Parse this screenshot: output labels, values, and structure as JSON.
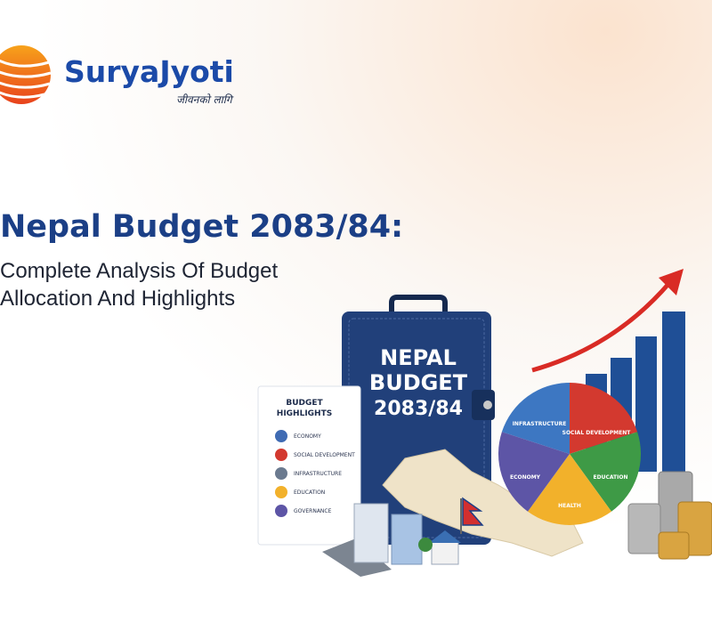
{
  "logo": {
    "name": "SuryaJyoti",
    "tagline": "जीवनको लागि"
  },
  "heading": {
    "title": "Nepal Budget 2083/84:",
    "subtitle": [
      "Complete Analysis Of Budget",
      "Allocation And Highlights"
    ]
  },
  "illustration": {
    "folder": [
      "NEPAL",
      "BUDGET",
      "2083/84"
    ],
    "card": {
      "title": [
        "BUDGET",
        "HIGHLIGHTS"
      ],
      "items": [
        "ECONOMY",
        "SOCIAL DEVELOPMENT",
        "INFRASTRUCTURE",
        "EDUCATION",
        "GOVERNANCE"
      ]
    },
    "pie": [
      "INFRASTRUCTURE",
      "SOCIAL DEVELOPMENT",
      "EDUCATION",
      "HEALTH",
      "ECONOMY"
    ]
  }
}
